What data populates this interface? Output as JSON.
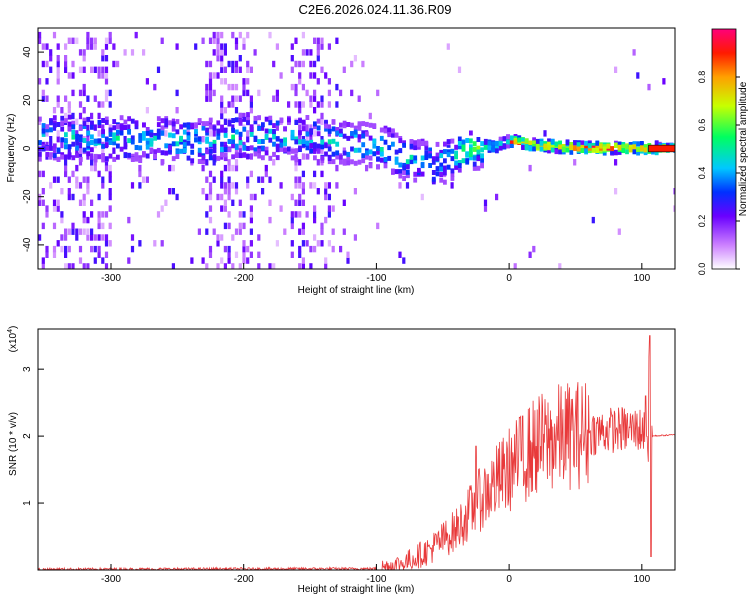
{
  "title": "C2E6.2026.024.11.36.R09",
  "chart_data": [
    {
      "type": "heatmap",
      "title": "C2E6.2026.024.11.36.R09",
      "xlabel": "Height of straight line (km)",
      "ylabel": "Frequency (Hz)",
      "xlim": [
        -355,
        125
      ],
      "ylim": [
        -50,
        50
      ],
      "xticks": [
        "-300",
        "-200",
        "-100",
        "0",
        "100"
      ],
      "yticks": [
        "-40",
        "-20",
        "0",
        "20",
        "40"
      ],
      "colorbar": {
        "label": "Normalized spectral amplitude",
        "range": [
          0,
          1
        ],
        "ticks": [
          "0.0",
          "0.2",
          "0.4",
          "0.6",
          "0.8"
        ]
      },
      "ridge": [
        {
          "x": -300,
          "y": 4
        },
        {
          "x": -250,
          "y": 3
        },
        {
          "x": -220,
          "y": 3
        },
        {
          "x": -200,
          "y": 5
        },
        {
          "x": -160,
          "y": 4
        },
        {
          "x": -120,
          "y": 2
        },
        {
          "x": -100,
          "y": 1
        },
        {
          "x": -80,
          "y": -4
        },
        {
          "x": -60,
          "y": -7
        },
        {
          "x": -45,
          "y": -5
        },
        {
          "x": -30,
          "y": 0
        },
        {
          "x": -10,
          "y": 1
        },
        {
          "x": 0,
          "y": 3
        },
        {
          "x": 20,
          "y": 1
        },
        {
          "x": 60,
          "y": 0
        },
        {
          "x": 105,
          "y": 0
        },
        {
          "x": 125,
          "y": 0
        }
      ]
    },
    {
      "type": "line",
      "xlabel": "Height of straight line (km)",
      "ylabel": "SNR (10 * v/v)",
      "yscale_label": "(x10",
      "yscale_exp": "4",
      "xlim": [
        -355,
        125
      ],
      "ylim": [
        0,
        3.6
      ],
      "xticks": [
        "-300",
        "-200",
        "-100",
        "0",
        "100"
      ],
      "yticks": [
        "1",
        "2",
        "3"
      ],
      "color": "#e8393a",
      "trend": [
        {
          "x": -355,
          "y": 0.01
        },
        {
          "x": -100,
          "y": 0.02
        },
        {
          "x": -80,
          "y": 0.1
        },
        {
          "x": -60,
          "y": 0.3
        },
        {
          "x": -40,
          "y": 0.6
        },
        {
          "x": -20,
          "y": 1.1
        },
        {
          "x": 0,
          "y": 1.5
        },
        {
          "x": 20,
          "y": 1.85
        },
        {
          "x": 40,
          "y": 2.0
        },
        {
          "x": 60,
          "y": 2.05
        },
        {
          "x": 80,
          "y": 2.1
        },
        {
          "x": 100,
          "y": 2.1
        },
        {
          "x": 106,
          "y": 2.0
        },
        {
          "x": 125,
          "y": 2.02
        }
      ],
      "peaks": [
        {
          "x": -25,
          "y": 1.85
        },
        {
          "x": 10,
          "y": 2.3
        },
        {
          "x": 103,
          "y": 2.6
        },
        {
          "x": 106,
          "y": 3.5
        },
        {
          "x": 107,
          "y": 0.2
        }
      ]
    }
  ]
}
